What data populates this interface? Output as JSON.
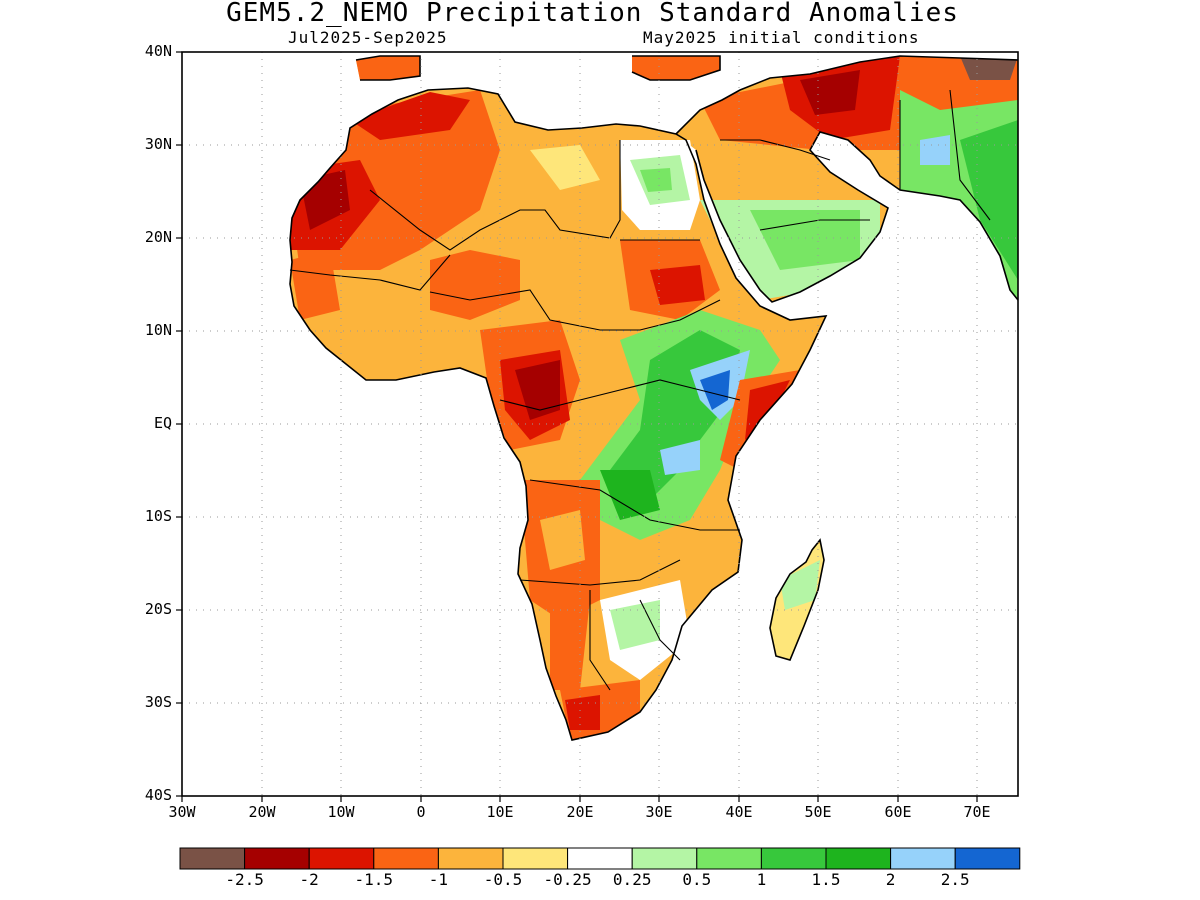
{
  "title": "GEM5.2_NEMO Precipitation Standard Anomalies",
  "subtitle_left": "Jul2025-Sep2025",
  "subtitle_right": "May2025 initial conditions",
  "map": {
    "region": "Africa",
    "lon_range": [
      -30,
      75
    ],
    "lat_range": [
      -40,
      40
    ],
    "y_ticks": [
      "40N",
      "30N",
      "20N",
      "10N",
      "EQ",
      "10S",
      "20S",
      "30S",
      "40S"
    ],
    "x_ticks": [
      "30W",
      "20W",
      "10W",
      "0",
      "10E",
      "20E",
      "30E",
      "40E",
      "50E",
      "60E",
      "70E"
    ],
    "grid": "dotted"
  },
  "legend": {
    "colors": [
      "#7a5246",
      "#a50000",
      "#dc1400",
      "#fa6414",
      "#fcb43c",
      "#fee67a",
      "#ffffff",
      "#b4f5a5",
      "#78e664",
      "#37c83c",
      "#1eb41e",
      "#96d2fa",
      "#1466d2"
    ],
    "labels": [
      "-2.5",
      "-2",
      "-1.5",
      "-1",
      "-0.5",
      "-0.25",
      "0.25",
      "0.5",
      "1",
      "1.5",
      "2",
      "2.5"
    ]
  }
}
